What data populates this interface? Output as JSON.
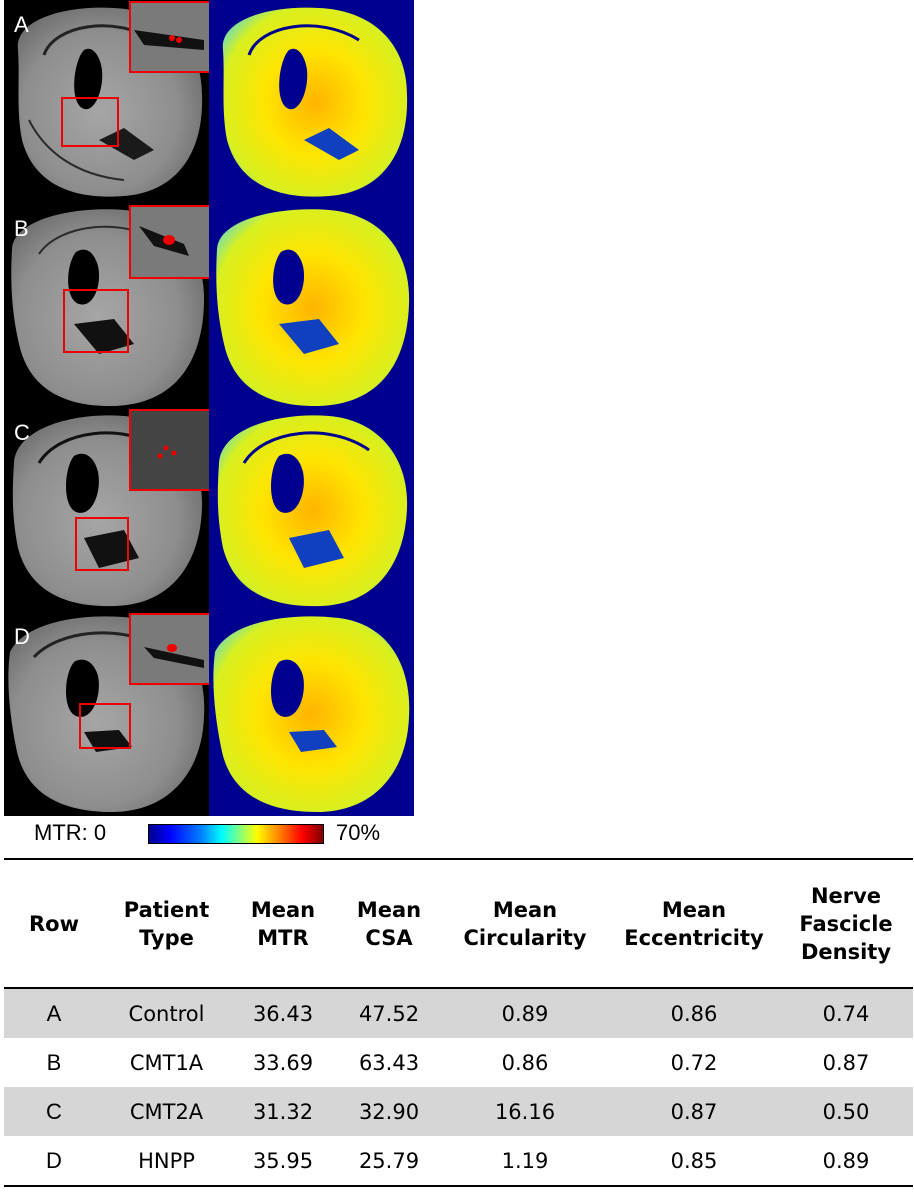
{
  "figure": {
    "panels": [
      {
        "letter": "A"
      },
      {
        "letter": "B"
      },
      {
        "letter": "C"
      },
      {
        "letter": "D"
      }
    ],
    "colorbar": {
      "label_min": "MTR: 0",
      "label_max": "70%"
    }
  },
  "table": {
    "headers": {
      "row": "Row",
      "patient_type": [
        "Patient",
        "Type"
      ],
      "mean_mtr": [
        "Mean",
        "MTR"
      ],
      "mean_csa": [
        "Mean",
        "CSA"
      ],
      "mean_circularity": [
        "Mean",
        "Circularity"
      ],
      "mean_eccentricity": [
        "Mean",
        "Eccentricity"
      ],
      "nerve_fascicle_density": [
        "Nerve",
        "Fascicle",
        "Density"
      ]
    },
    "rows": [
      {
        "row": "A",
        "patient_type": "Control",
        "mean_mtr": "36.43",
        "mean_csa": "47.52",
        "mean_circularity": "0.89",
        "mean_eccentricity": "0.86",
        "nerve_fascicle_density": "0.74"
      },
      {
        "row": "B",
        "patient_type": "CMT1A",
        "mean_mtr": "33.69",
        "mean_csa": "63.43",
        "mean_circularity": "0.86",
        "mean_eccentricity": "0.72",
        "nerve_fascicle_density": "0.87"
      },
      {
        "row": "C",
        "patient_type": "CMT2A",
        "mean_mtr": "31.32",
        "mean_csa": "32.90",
        "mean_circularity": "16.16",
        "mean_eccentricity": "0.87",
        "nerve_fascicle_density": "0.50"
      },
      {
        "row": "D",
        "patient_type": "HNPP",
        "mean_mtr": "35.95",
        "mean_csa": "25.79",
        "mean_circularity": "1.19",
        "mean_eccentricity": "0.85",
        "nerve_fascicle_density": "0.89"
      }
    ]
  }
}
